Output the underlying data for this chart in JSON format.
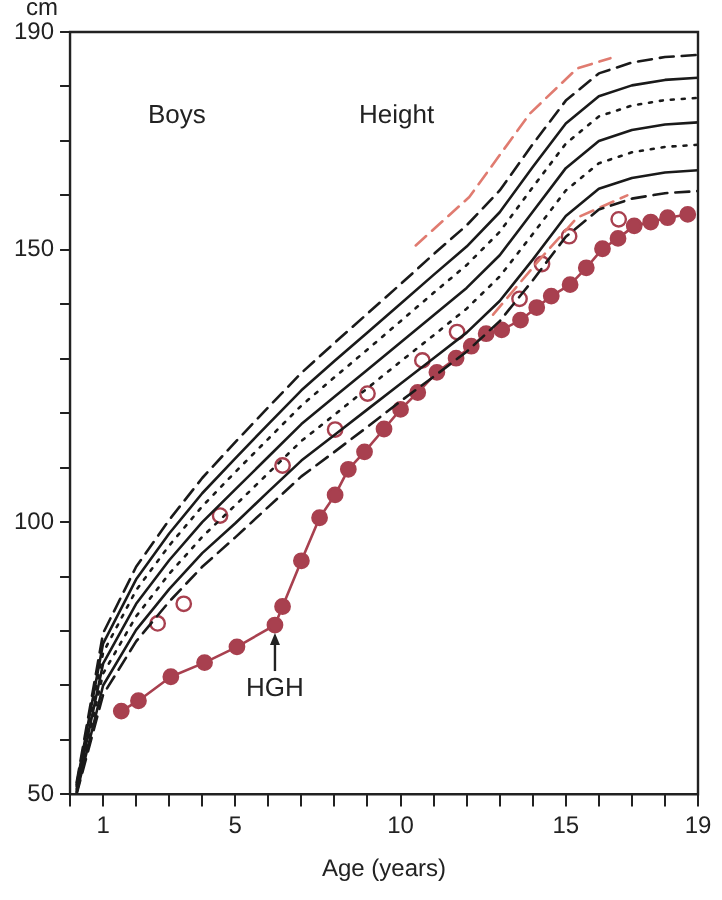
{
  "chart_data": {
    "type": "line",
    "xlabel": "Age (years)",
    "ylabel": "cm",
    "annotations": [
      "Boys",
      "Height",
      {
        "text": "HGH",
        "x": 6.2,
        "y": 81.1
      }
    ],
    "xlim": [
      0,
      19
    ],
    "ylim": [
      50,
      190
    ],
    "xticks": [
      {
        "value": 0,
        "label": null
      },
      1,
      {
        "value": 2,
        "label": null
      },
      {
        "value": 3,
        "label": null
      },
      {
        "value": 4,
        "label": null
      },
      5,
      {
        "value": 6,
        "label": null
      },
      {
        "value": 7,
        "label": null
      },
      {
        "value": 8,
        "label": null
      },
      {
        "value": 9,
        "label": null
      },
      10,
      {
        "value": 11,
        "label": null
      },
      {
        "value": 12,
        "label": null
      },
      {
        "value": 13,
        "label": null
      },
      {
        "value": 14,
        "label": null
      },
      15,
      {
        "value": 16,
        "label": null
      },
      {
        "value": 17,
        "label": null
      },
      {
        "value": 18,
        "label": null
      },
      19
    ],
    "yticks": [
      50,
      {
        "value": 60,
        "label": null
      },
      {
        "value": 70,
        "label": null
      },
      {
        "value": 80,
        "label": null
      },
      {
        "value": 90,
        "label": null
      },
      100,
      {
        "value": 110,
        "label": null
      },
      {
        "value": 120,
        "label": null
      },
      {
        "value": 130,
        "label": null
      },
      {
        "value": 140,
        "label": null
      },
      150,
      {
        "value": 160,
        "label": null
      },
      {
        "value": 170,
        "label": null
      },
      {
        "value": 180,
        "label": null
      },
      190
    ],
    "grid": false,
    "legend": false,
    "series": [
      {
        "type": "line",
        "color": "#1a1a1a",
        "marker": "none",
        "line_style": "dashed",
        "x": [
          0.2,
          1,
          2,
          3,
          4,
          5,
          6,
          7,
          8,
          9,
          10,
          11,
          12,
          13,
          14,
          15,
          16,
          17,
          18,
          19
        ],
        "values": [
          52.2,
          79.6,
          91.8,
          100.4,
          108.1,
          114.7,
          121.1,
          127.4,
          132.9,
          138.3,
          143.7,
          149.2,
          154.5,
          160.9,
          169.4,
          177.4,
          182.4,
          184.4,
          185.4,
          185.8
        ]
      },
      {
        "type": "line",
        "color": "#1a1a1a",
        "marker": "none",
        "line_style": "solid",
        "x": [
          0.2,
          1,
          2,
          3,
          4,
          5,
          6,
          7,
          8,
          9,
          10,
          11,
          12,
          13,
          14,
          15,
          16,
          17,
          18,
          19
        ],
        "values": [
          51.8,
          77.7,
          89.5,
          97.9,
          105.3,
          111.7,
          118,
          124.2,
          129.6,
          134.8,
          140.1,
          145.4,
          150.6,
          156.9,
          165.2,
          173.2,
          178.2,
          180.2,
          181.2,
          181.6
        ]
      },
      {
        "type": "line",
        "color": "#1a1a1a",
        "marker": "none",
        "line_style": "dotted",
        "x": [
          0.2,
          1,
          2,
          3,
          4,
          5,
          6,
          7,
          8,
          9,
          10,
          11,
          12,
          13,
          14,
          15,
          16,
          17,
          18,
          19
        ],
        "values": [
          51.5,
          76,
          87.5,
          95.7,
          102.9,
          109.2,
          115.3,
          121.4,
          126.6,
          131.7,
          136.9,
          142.1,
          147.2,
          153.3,
          161.5,
          169.5,
          174.5,
          176.5,
          177.5,
          177.9
        ]
      },
      {
        "type": "line",
        "color": "#1a1a1a",
        "marker": "none",
        "line_style": "solid",
        "x": [
          0.2,
          1,
          2,
          3,
          4,
          5,
          6,
          7,
          8,
          9,
          10,
          11,
          12,
          13,
          14,
          15,
          16,
          17,
          18,
          19
        ],
        "values": [
          51,
          74,
          85,
          93,
          100,
          106,
          112,
          118,
          123,
          128,
          133,
          138,
          143,
          149,
          157,
          165,
          170,
          172,
          173,
          173.4
        ]
      },
      {
        "type": "line",
        "color": "#1a1a1a",
        "marker": "none",
        "line_style": "dotted",
        "x": [
          0.2,
          1,
          2,
          3,
          4,
          5,
          6,
          7,
          8,
          9,
          10,
          11,
          12,
          13,
          14,
          15,
          16,
          17,
          18,
          19
        ],
        "values": [
          50.6,
          72.2,
          82.7,
          90.5,
          97.3,
          103.1,
          109,
          114.9,
          119.7,
          124.6,
          129.5,
          134.3,
          139.2,
          145.1,
          152.9,
          160.9,
          165.9,
          167.9,
          168.9,
          169.3
        ]
      },
      {
        "type": "line",
        "color": "#1a1a1a",
        "marker": "none",
        "line_style": "solid",
        "x": [
          0.2,
          1,
          2,
          3,
          4,
          5,
          6,
          7,
          8,
          9,
          10,
          11,
          12,
          13,
          14,
          15,
          16,
          17,
          18,
          19
        ],
        "values": [
          50.3,
          70,
          80.2,
          87.7,
          94.3,
          99.8,
          105.6,
          111.3,
          116,
          120.7,
          125.4,
          130.1,
          134.8,
          140.6,
          148.2,
          156.2,
          161.2,
          163.2,
          164.2,
          164.6
        ]
      },
      {
        "type": "line",
        "color": "#1a1a1a",
        "marker": "none",
        "line_style": "dashed",
        "x": [
          0.2,
          1,
          2,
          3,
          4,
          5,
          6,
          7,
          8,
          9,
          10,
          11,
          12,
          13,
          14,
          15,
          16,
          17,
          18,
          19
        ],
        "values": [
          50.1,
          68.3,
          78.1,
          85.4,
          91.8,
          97.2,
          102.8,
          108.4,
          112.9,
          117.5,
          122.2,
          126.7,
          131.3,
          136.9,
          144.4,
          152.4,
          157.4,
          159.4,
          160.4,
          160.8
        ]
      },
      {
        "type": "line",
        "color": "#e07b70",
        "marker": "none",
        "line_style": "dashed",
        "x": [
          10.46,
          12.08,
          13.91,
          15.34,
          16.35
        ],
        "values": [
          150.8,
          159.7,
          175,
          183.3,
          185.2
        ]
      },
      {
        "type": "line",
        "color": "#e07b70",
        "marker": "none",
        "line_style": "dashed",
        "x": [
          12.8,
          14.12,
          15.34,
          16.86
        ],
        "values": [
          138.1,
          147.6,
          155.9,
          160
        ]
      },
      {
        "color": "#a8404f",
        "marker": "circle",
        "line_style": "solid",
        "x": [
          1.55,
          2.07,
          3.05,
          4.07,
          5.05,
          6.2,
          6.43,
          7,
          7.55,
          8.02,
          8.42,
          8.91,
          9.5,
          10,
          10.52,
          11.1,
          11.68,
          12.14,
          12.59,
          13.06,
          13.63,
          14.12,
          14.56,
          15.13,
          15.62,
          16.11,
          16.58,
          17.07,
          17.57,
          18.08,
          18.69
        ],
        "values": [
          65.3,
          67.2,
          71.6,
          74.2,
          77.1,
          81.1,
          84.5,
          92.9,
          100.8,
          105,
          109.7,
          112.9,
          117.1,
          120.7,
          123.8,
          127.5,
          130.1,
          132.3,
          134.6,
          135.3,
          137.1,
          139.4,
          141.5,
          143.6,
          146.7,
          150.2,
          152.1,
          154.4,
          155.1,
          155.9,
          156.5
        ]
      },
      {
        "type": "scatter",
        "color": "#a8404f",
        "marker": "circle",
        "x": [
          2.65,
          3.44,
          4.54,
          6.43,
          8.02,
          9,
          10.66,
          11.71,
          13.6,
          14.28,
          15.1,
          16.6
        ],
        "values": [
          81.4,
          85,
          101.2,
          110.4,
          117,
          123.6,
          129.7,
          134.9,
          141,
          147.4,
          152.5,
          155.6
        ]
      }
    ]
  }
}
